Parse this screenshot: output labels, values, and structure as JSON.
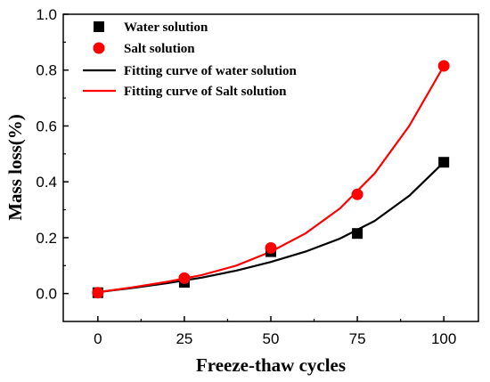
{
  "chart_data": {
    "type": "scatter",
    "xlabel": "Freeze-thaw cycles",
    "ylabel": "Mass loss(%)",
    "xlim": [
      -10,
      110
    ],
    "ylim": [
      -0.1,
      1.0
    ],
    "xticks": [
      "0",
      "25",
      "50",
      "75",
      "100"
    ],
    "yticks": [
      "0.0",
      "0.2",
      "0.4",
      "0.6",
      "0.8",
      "1.0"
    ],
    "legend_position": "top-left",
    "series": [
      {
        "name": "Water solution",
        "kind": "points",
        "marker": "square",
        "color": "#000000",
        "x": [
          0,
          25,
          50,
          75,
          100
        ],
        "y": [
          0.003,
          0.04,
          0.15,
          0.215,
          0.47
        ]
      },
      {
        "name": "Salt solution",
        "kind": "points",
        "marker": "circle",
        "color": "#ff0000",
        "x": [
          0,
          25,
          50,
          75,
          100
        ],
        "y": [
          0.003,
          0.055,
          0.163,
          0.355,
          0.815
        ]
      },
      {
        "name": "Fitting curve of water solution",
        "kind": "curve",
        "color": "#000000",
        "x": [
          0,
          10,
          20,
          30,
          40,
          50,
          60,
          70,
          80,
          90,
          100
        ],
        "y": [
          0.005,
          0.02,
          0.037,
          0.057,
          0.082,
          0.113,
          0.15,
          0.197,
          0.26,
          0.35,
          0.47
        ]
      },
      {
        "name": "Fitting curve of Salt solution",
        "kind": "curve",
        "color": "#ff0000",
        "x": [
          0,
          10,
          20,
          30,
          40,
          50,
          60,
          70,
          80,
          90,
          100
        ],
        "y": [
          0.005,
          0.022,
          0.042,
          0.066,
          0.1,
          0.15,
          0.215,
          0.305,
          0.43,
          0.6,
          0.815
        ]
      }
    ]
  }
}
